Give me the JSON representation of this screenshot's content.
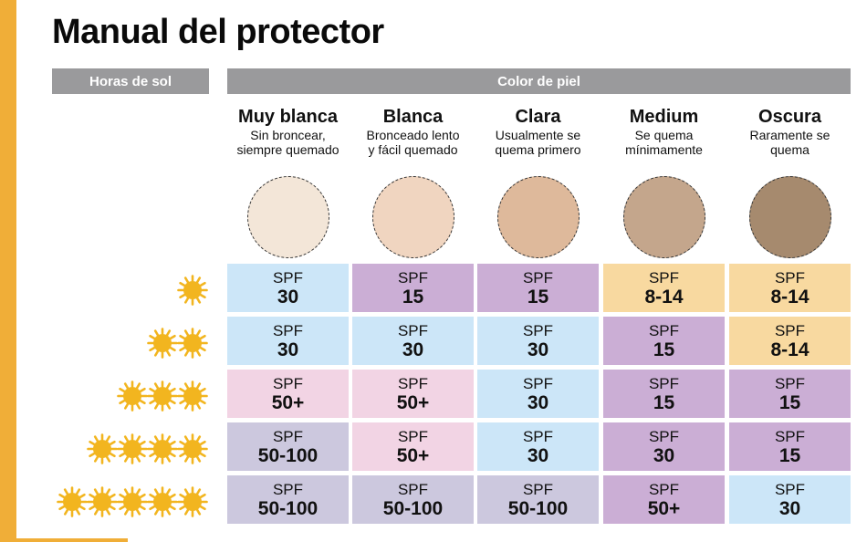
{
  "title": "Manual del protector",
  "headers": {
    "sun_hours": "Horas de sol",
    "skin_color": "Color de piel"
  },
  "skin_types": [
    {
      "name": "Muy blanca",
      "desc1": "Sin broncear,",
      "desc2": "siempre quemado",
      "color": "#f3e6d8"
    },
    {
      "name": "Blanca",
      "desc1": "Bronceado lento",
      "desc2": "y fácil quemado",
      "color": "#f0d5c0"
    },
    {
      "name": "Clara",
      "desc1": "Usualmente se",
      "desc2": "quema primero",
      "color": "#deb99b"
    },
    {
      "name": "Medium",
      "desc1": "Se quema",
      "desc2": "mínimamente",
      "color": "#c4a68c"
    },
    {
      "name": "Oscura",
      "desc1": "Raramente se",
      "desc2": "quema",
      "color": "#a68a6e"
    }
  ],
  "colors": {
    "accent": "#f0ae38",
    "sun": "#f2b51f",
    "blue": "#cce6f8",
    "purple": "#cbaed5",
    "orange": "#f8d9a0",
    "pink": "#f2d4e4",
    "lavender": "#ccc8de"
  },
  "rows": [
    {
      "sun_count": 1,
      "cells": [
        {
          "label": "SPF",
          "value": "30",
          "color": "#cce6f8"
        },
        {
          "label": "SPF",
          "value": "15",
          "color": "#cbaed5"
        },
        {
          "label": "SPF",
          "value": "15",
          "color": "#cbaed5"
        },
        {
          "label": "SPF",
          "value": "8-14",
          "color": "#f8d9a0"
        },
        {
          "label": "SPF",
          "value": "8-14",
          "color": "#f8d9a0"
        }
      ]
    },
    {
      "sun_count": 2,
      "cells": [
        {
          "label": "SPF",
          "value": "30",
          "color": "#cce6f8"
        },
        {
          "label": "SPF",
          "value": "30",
          "color": "#cce6f8"
        },
        {
          "label": "SPF",
          "value": "30",
          "color": "#cce6f8"
        },
        {
          "label": "SPF",
          "value": "15",
          "color": "#cbaed5"
        },
        {
          "label": "SPF",
          "value": "8-14",
          "color": "#f8d9a0"
        }
      ]
    },
    {
      "sun_count": 3,
      "cells": [
        {
          "label": "SPF",
          "value": "50+",
          "color": "#f2d4e4"
        },
        {
          "label": "SPF",
          "value": "50+",
          "color": "#f2d4e4"
        },
        {
          "label": "SPF",
          "value": "30",
          "color": "#cce6f8"
        },
        {
          "label": "SPF",
          "value": "15",
          "color": "#cbaed5"
        },
        {
          "label": "SPF",
          "value": "15",
          "color": "#cbaed5"
        }
      ]
    },
    {
      "sun_count": 4,
      "cells": [
        {
          "label": "SPF",
          "value": "50-100",
          "color": "#ccc8de"
        },
        {
          "label": "SPF",
          "value": "50+",
          "color": "#f2d4e4"
        },
        {
          "label": "SPF",
          "value": "30",
          "color": "#cce6f8"
        },
        {
          "label": "SPF",
          "value": "30",
          "color": "#cbaed5"
        },
        {
          "label": "SPF",
          "value": "15",
          "color": "#cbaed5"
        }
      ]
    },
    {
      "sun_count": 5,
      "cells": [
        {
          "label": "SPF",
          "value": "50-100",
          "color": "#ccc8de"
        },
        {
          "label": "SPF",
          "value": "50-100",
          "color": "#ccc8de"
        },
        {
          "label": "SPF",
          "value": "50-100",
          "color": "#ccc8de"
        },
        {
          "label": "SPF",
          "value": "50+",
          "color": "#cbaed5"
        },
        {
          "label": "SPF",
          "value": "30",
          "color": "#cce6f8"
        }
      ]
    }
  ]
}
